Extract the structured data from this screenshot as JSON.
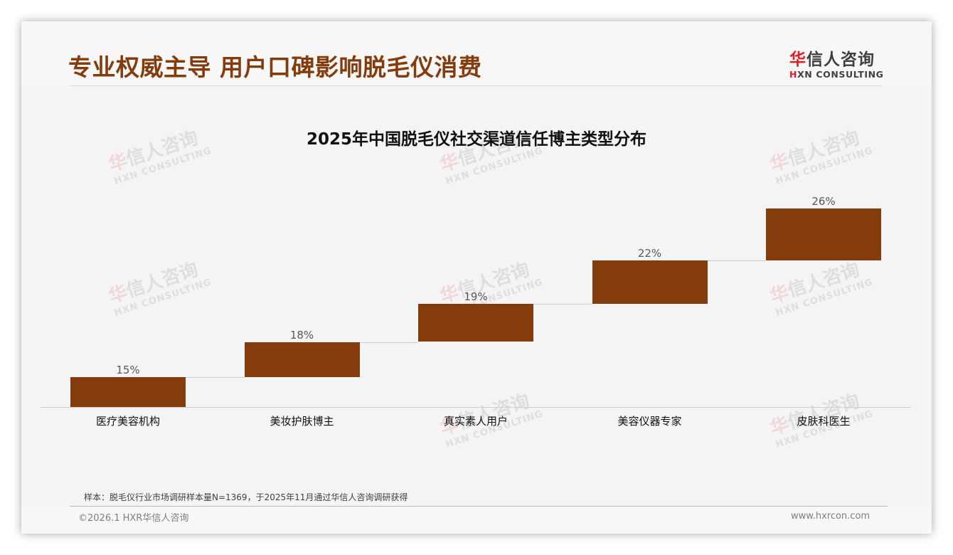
{
  "slide": {
    "title": "专业权威主导 用户口碑影响脱毛仪消费"
  },
  "logo": {
    "cn_first": "华",
    "cn_rest": "信人咨询",
    "en_first": "H",
    "en_rest": "XN CONSULTING"
  },
  "watermark": {
    "cn_first": "华",
    "cn_rest": "信人咨询",
    "en": "HXN CONSULTING"
  },
  "colors": {
    "bar": "#843c0c",
    "title": "#843c0c",
    "logo_accent": "#e01c24"
  },
  "chart_data": {
    "type": "bar",
    "subtype": "waterfall-staggered",
    "title": "2025年中国脱毛仪社交渠道信任博主类型分布",
    "categories": [
      "医疗美容机构",
      "美妆护肤博主",
      "真实素人用户",
      "美容仪器专家",
      "皮肤科医生"
    ],
    "values": [
      15,
      18,
      19,
      22,
      26
    ],
    "value_labels": [
      "15%",
      "18%",
      "19%",
      "22%",
      "26%"
    ],
    "unit": "%",
    "xlabel": "",
    "ylabel": "",
    "grid": false,
    "legend": null
  },
  "footer": {
    "note": "样本：脱毛仪行业市场调研样本量N=1369，于2025年11月通过华信人咨询调研获得",
    "copyright": "©2026.1 HXR华信人咨询",
    "website": "www.hxrcon.com"
  }
}
